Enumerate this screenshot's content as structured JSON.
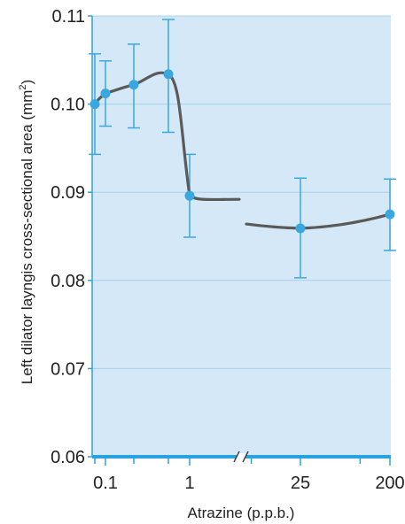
{
  "chart_data": {
    "type": "line",
    "title": "",
    "xlabel": "Atrazine (p.p.b.)",
    "ylabel_main": "Left dilator layngis cross-sectional area (mm",
    "ylabel_sup": "2",
    "ylabel_close": ")",
    "ylim": [
      0.06,
      0.11
    ],
    "yticks": [
      {
        "value": 0.06,
        "label": "0.06"
      },
      {
        "value": 0.07,
        "label": "0.07"
      },
      {
        "value": 0.08,
        "label": "0.08"
      },
      {
        "value": 0.09,
        "label": "0.09"
      },
      {
        "value": 0.1,
        "label": "0.10"
      },
      {
        "value": 0.11,
        "label": "0.11"
      }
    ],
    "xticks": [
      {
        "position": 0.1,
        "label": "0.1"
      },
      {
        "position": 1,
        "label": "1"
      },
      {
        "position": 25,
        "label": "25"
      },
      {
        "position": 200,
        "label": "200"
      }
    ],
    "axis_break": true,
    "grid": true,
    "series": [
      {
        "points": [
          {
            "x": 0.08,
            "y": 0.1,
            "err_low": 0.0943,
            "err_high": 0.1057
          },
          {
            "x": 0.1,
            "y": 0.1012,
            "err_low": 0.0975,
            "err_high": 0.1049
          },
          {
            "x": 0.25,
            "y": 0.1022,
            "err_low": 0.0973,
            "err_high": 0.1068
          },
          {
            "x": 0.6,
            "y": 0.1034,
            "err_low": 0.0968,
            "err_high": 0.1096
          },
          {
            "x": 1,
            "y": 0.0896,
            "err_low": 0.0849,
            "err_high": 0.0943
          },
          {
            "x": 25,
            "y": 0.0859,
            "err_low": 0.0803,
            "err_high": 0.0916
          },
          {
            "x": 200,
            "y": 0.0875,
            "err_low": 0.0834,
            "err_high": 0.0915
          }
        ]
      }
    ],
    "colors": {
      "plot_background": "#d4e8f7",
      "gridline": "#a9d0ec",
      "marker": "#3aa8e0",
      "error_bar": "#3aa8e0",
      "curve": "#5a5a5a",
      "axis": "#29a3e0"
    }
  }
}
